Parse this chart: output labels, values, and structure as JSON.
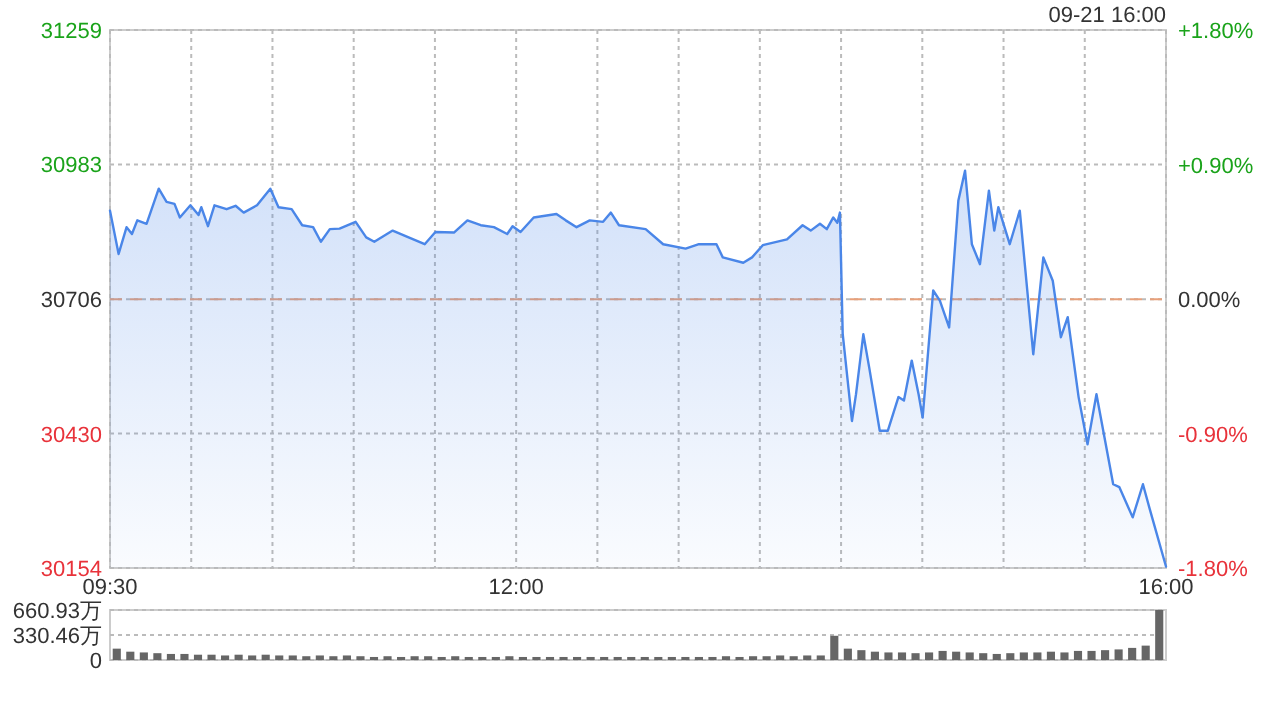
{
  "chart_data": [
    {
      "type": "area",
      "annotations": [
        "09-21 16:00"
      ],
      "x": [
        9.5,
        9.553,
        9.602,
        9.635,
        9.668,
        9.725,
        9.8,
        9.848,
        9.897,
        9.93,
        9.995,
        10.045,
        10.062,
        10.103,
        10.143,
        10.218,
        10.273,
        10.323,
        10.405,
        10.487,
        10.537,
        10.618,
        10.683,
        10.75,
        10.798,
        10.853,
        10.913,
        11.012,
        11.077,
        11.127,
        11.24,
        11.338,
        11.437,
        11.503,
        11.617,
        11.7,
        11.782,
        11.863,
        11.945,
        11.978,
        12.027,
        12.108,
        12.248,
        12.305,
        12.372,
        12.453,
        12.535,
        12.583,
        12.633,
        12.797,
        12.905,
        13.043,
        13.125,
        13.233,
        13.272,
        13.398,
        13.452,
        13.518,
        13.667,
        13.763,
        13.813,
        13.87,
        13.912,
        13.952,
        13.977,
        13.993,
        14.01,
        14.067,
        14.092,
        14.137,
        14.173,
        14.238,
        14.288,
        14.353,
        14.387,
        14.435,
        14.477,
        14.502,
        14.567,
        14.608,
        14.665,
        14.722,
        14.763,
        14.805,
        14.855,
        14.91,
        14.943,
        14.968,
        15.038,
        15.1,
        15.183,
        15.245,
        15.303,
        15.353,
        15.395,
        15.462,
        15.517,
        15.572,
        15.675,
        15.713,
        15.795,
        15.858,
        15.9,
        16
      ],
      "series": [
        {
          "color": "#4a86e8",
          "values": [
            30888,
            30799,
            30854,
            30840,
            30868,
            30861,
            30933,
            30906,
            30902,
            30874,
            30899,
            30879,
            30895,
            30856,
            30899,
            30891,
            30898,
            30884,
            30899,
            30933,
            30895,
            30891,
            30858,
            30854,
            30824,
            30850,
            30851,
            30865,
            30833,
            30824,
            30847,
            30833,
            30819,
            30844,
            30843,
            30868,
            30858,
            30854,
            30840,
            30856,
            30844,
            30874,
            30881,
            30868,
            30854,
            30868,
            30865,
            30884,
            30858,
            30850,
            30819,
            30810,
            30819,
            30819,
            30792,
            30781,
            30792,
            30817,
            30829,
            30858,
            30847,
            30861,
            30850,
            30874,
            30863,
            30884,
            30635,
            30456,
            30511,
            30634,
            30566,
            30436,
            30436,
            30505,
            30498,
            30580,
            30511,
            30463,
            30724,
            30703,
            30648,
            30909,
            30970,
            30819,
            30778,
            30929,
            30847,
            30895,
            30819,
            30888,
            30593,
            30792,
            30744,
            30628,
            30669,
            30505,
            30408,
            30511,
            30326,
            30320,
            30258,
            30326,
            30275,
            30157
          ]
        }
      ],
      "xlim": [
        9.5,
        16
      ],
      "xticks": [
        {
          "value": 9.5,
          "label": "09:30"
        },
        {
          "value": 10,
          "label": null
        },
        {
          "value": 10.5,
          "label": null
        },
        {
          "value": 11,
          "label": null
        },
        {
          "value": 11.5,
          "label": null
        },
        {
          "value": 12,
          "label": "12:00"
        },
        {
          "value": 12.5,
          "label": null
        },
        {
          "value": 13,
          "label": null
        },
        {
          "value": 13.5,
          "label": null
        },
        {
          "value": 14,
          "label": null
        },
        {
          "value": 14.5,
          "label": null
        },
        {
          "value": 15,
          "label": null
        },
        {
          "value": 15.5,
          "label": null
        },
        {
          "value": 16,
          "label": "16:00"
        }
      ],
      "ylim": [
        30154,
        31259
      ],
      "yticks": [
        30154,
        30430,
        30706,
        30983,
        31259
      ],
      "y2lim": [
        -1.8,
        1.8
      ],
      "y2ticks": [
        {
          "value": -1.8,
          "label": "-1.80%"
        },
        {
          "value": -0.9,
          "label": "-0.90%"
        },
        {
          "value": 0,
          "label": "0.00%"
        },
        {
          "value": 0.9,
          "label": "+0.90%"
        },
        {
          "value": 1.8,
          "label": "+1.80%"
        }
      ],
      "ref_lines": [
        {
          "axis": "y",
          "value": 30706,
          "color": "#e8a07a",
          "line_style": "dashed"
        }
      ],
      "grid": true
    },
    {
      "type": "bar",
      "tick_labels": "y",
      "grid": "y",
      "categories": [
        null,
        null,
        null,
        null,
        null,
        null,
        null,
        null,
        null,
        null,
        null,
        null,
        null,
        null,
        null,
        null,
        null,
        null,
        null,
        null,
        null,
        null,
        null,
        null,
        null,
        null,
        null,
        null,
        null,
        null,
        null,
        null,
        null,
        null,
        null,
        null,
        null,
        null,
        null,
        null,
        null,
        null,
        null,
        null,
        null,
        null,
        null,
        null,
        null,
        null,
        null,
        null,
        null,
        null,
        null,
        null,
        null,
        null,
        null,
        null,
        null,
        null,
        null,
        null,
        null,
        null,
        null,
        null,
        null,
        null,
        null,
        null,
        null,
        null,
        null,
        null,
        null,
        null
      ],
      "series": [
        {
          "color": "#666666",
          "values": [
            150,
            110,
            100,
            90,
            80,
            80,
            70,
            70,
            60,
            70,
            60,
            70,
            60,
            60,
            50,
            60,
            50,
            60,
            50,
            40,
            50,
            40,
            50,
            50,
            40,
            50,
            40,
            40,
            40,
            50,
            40,
            40,
            40,
            40,
            40,
            40,
            40,
            40,
            40,
            40,
            40,
            40,
            40,
            40,
            40,
            50,
            40,
            50,
            50,
            60,
            50,
            60,
            60,
            320,
            150,
            130,
            110,
            100,
            100,
            90,
            100,
            120,
            110,
            100,
            90,
            80,
            90,
            100,
            100,
            110,
            100,
            120,
            120,
            130,
            140,
            160,
            190,
            660.93
          ]
        }
      ],
      "ylim": [
        0,
        660.93
      ],
      "yticks": [
        0,
        {
          "value": 330.46,
          "label": "330.46万"
        },
        {
          "value": 660.93,
          "label": "660.93万"
        }
      ]
    }
  ]
}
